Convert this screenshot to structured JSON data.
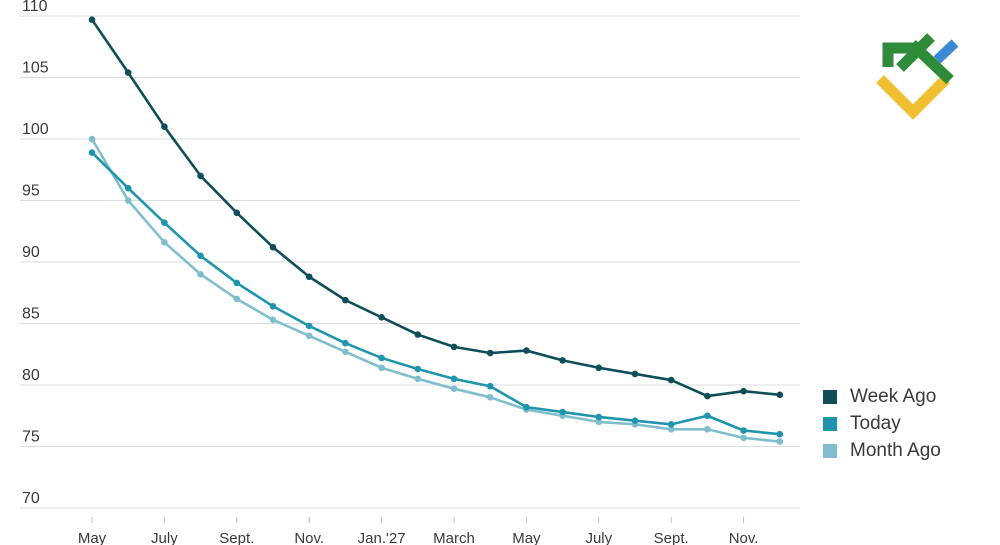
{
  "chart_data": {
    "type": "line",
    "title": "",
    "xlabel": "",
    "ylabel": "",
    "ylim": [
      70,
      110
    ],
    "yticks": [
      70,
      75,
      80,
      85,
      90,
      95,
      100,
      105,
      110
    ],
    "grid": true,
    "legend_position": "bottom-right",
    "x_tick_labels": [
      {
        "index": 0,
        "label": "May"
      },
      {
        "index": 2,
        "label": "July"
      },
      {
        "index": 4,
        "label": "Sept."
      },
      {
        "index": 6,
        "label": "Nov."
      },
      {
        "index": 8,
        "label": "Jan.'27"
      },
      {
        "index": 10,
        "label": "March"
      },
      {
        "index": 12,
        "label": "May"
      },
      {
        "index": 14,
        "label": "July"
      },
      {
        "index": 16,
        "label": "Sept."
      },
      {
        "index": 18,
        "label": "Nov."
      }
    ],
    "point_count": 20,
    "series": [
      {
        "name": "Month Ago",
        "color": "#7fbfcd",
        "values": [
          100.0,
          95.0,
          91.6,
          89.0,
          87.0,
          85.3,
          84.0,
          82.7,
          81.4,
          80.5,
          79.7,
          79.0,
          78.0,
          77.5,
          77.0,
          76.8,
          76.4,
          76.4,
          75.7,
          75.4
        ]
      },
      {
        "name": "Today",
        "color": "#1f95ad",
        "values": [
          98.9,
          96.0,
          93.2,
          90.5,
          88.3,
          86.4,
          84.8,
          83.4,
          82.2,
          81.3,
          80.5,
          79.9,
          78.2,
          77.8,
          77.4,
          77.1,
          76.8,
          77.5,
          76.3,
          76.0
        ]
      },
      {
        "name": "Week Ago",
        "color": "#0e4e58",
        "values": [
          109.7,
          105.4,
          101.0,
          97.0,
          94.0,
          91.2,
          88.8,
          86.9,
          85.5,
          84.1,
          83.1,
          82.6,
          82.8,
          82.0,
          81.4,
          80.9,
          80.4,
          79.1,
          79.5,
          79.2
        ]
      }
    ],
    "legend": [
      "Week Ago",
      "Today",
      "Month Ago"
    ]
  },
  "logo": {
    "name": "brand-logo",
    "colors": [
      "#2e8b3a",
      "#3a8ad6",
      "#f0c030"
    ]
  }
}
